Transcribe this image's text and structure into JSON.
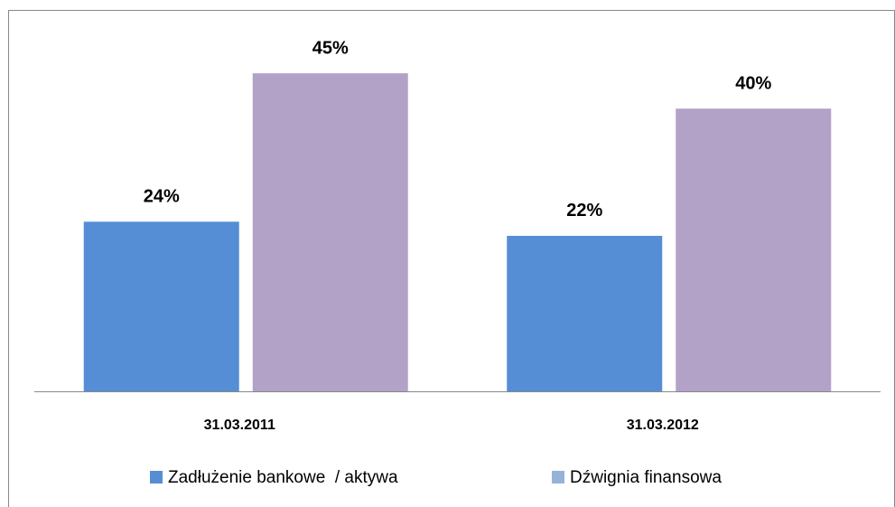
{
  "chart_data": {
    "type": "bar",
    "categories": [
      "31.03.2011",
      "31.03.2012"
    ],
    "series": [
      {
        "name": "Zadłużenie bankowe  / aktywa",
        "color": "#558ed5",
        "legend_color": "#558ed5",
        "values": [
          24,
          22
        ],
        "value_labels": [
          "24%",
          "22%"
        ]
      },
      {
        "name": "Dźwignia finansowa",
        "color": "#b3a2c7",
        "legend_color": "#95b3d7",
        "values": [
          45,
          40
        ],
        "value_labels": [
          "45%",
          "40%"
        ]
      }
    ],
    "ylim": [
      0,
      50
    ]
  }
}
